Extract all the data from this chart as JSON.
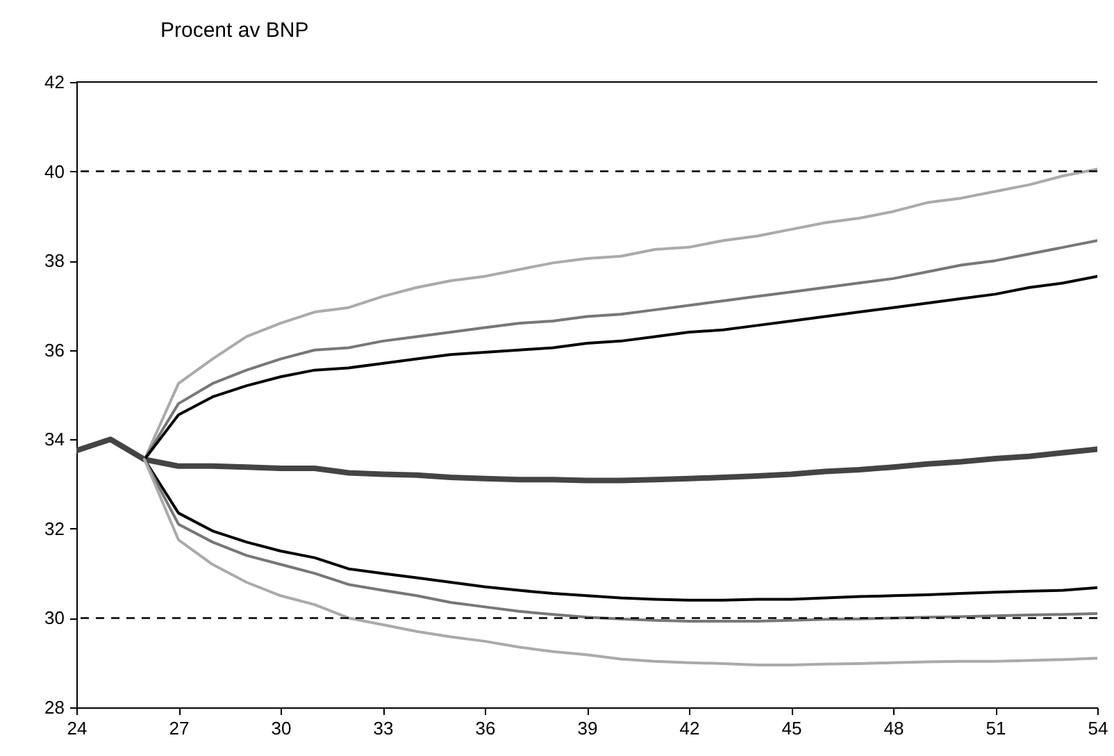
{
  "chart_data": {
    "type": "line",
    "ylabel": "Procent av BNP",
    "xlim": [
      24,
      54
    ],
    "xticks": [
      24,
      27,
      30,
      33,
      36,
      39,
      42,
      45,
      48,
      51,
      54
    ],
    "ylim": [
      28,
      42
    ],
    "yticks": [
      28,
      30,
      32,
      34,
      36,
      38,
      40,
      42
    ],
    "grid": false,
    "ref_lines": [
      {
        "axis": "y",
        "value": 40,
        "label": null,
        "line_style": "dashed",
        "color": "#000000"
      },
      {
        "axis": "y",
        "value": 30,
        "label": null,
        "line_style": "dashed",
        "color": "#000000"
      }
    ],
    "series": [
      {
        "color": "#444444",
        "x": [
          24,
          25,
          26,
          27,
          28,
          29,
          30,
          31,
          32,
          33,
          34,
          35,
          36,
          37,
          38,
          39,
          40,
          41,
          42,
          43,
          44,
          45,
          46,
          47,
          48,
          49,
          50,
          51,
          52,
          53,
          54
        ],
        "values": [
          33.75,
          34.0,
          33.55,
          33.4,
          33.4,
          33.38,
          33.35,
          33.35,
          33.25,
          33.22,
          33.2,
          33.15,
          33.12,
          33.1,
          33.1,
          33.08,
          33.08,
          33.1,
          33.12,
          33.15,
          33.18,
          33.22,
          33.28,
          33.32,
          33.38,
          33.45,
          33.5,
          33.57,
          33.62,
          33.7,
          33.78
        ]
      },
      {
        "color": "#aaaaaa",
        "x": [
          26,
          27,
          28,
          29,
          30,
          31,
          32,
          33,
          34,
          35,
          36,
          37,
          38,
          39,
          40,
          41,
          42,
          43,
          44,
          45,
          46,
          47,
          48,
          49,
          50,
          51,
          52,
          53,
          54
        ],
        "values": [
          33.55,
          35.25,
          35.8,
          36.3,
          36.6,
          36.85,
          36.95,
          37.2,
          37.4,
          37.55,
          37.65,
          37.8,
          37.95,
          38.05,
          38.1,
          38.25,
          38.3,
          38.45,
          38.55,
          38.7,
          38.85,
          38.95,
          39.1,
          39.3,
          39.4,
          39.55,
          39.7,
          39.9,
          40.05
        ]
      },
      {
        "color": "#777777",
        "x": [
          26,
          27,
          28,
          29,
          30,
          31,
          32,
          33,
          34,
          35,
          36,
          37,
          38,
          39,
          40,
          41,
          42,
          43,
          44,
          45,
          46,
          47,
          48,
          49,
          50,
          51,
          52,
          53,
          54
        ],
        "values": [
          33.55,
          34.8,
          35.25,
          35.55,
          35.8,
          36.0,
          36.05,
          36.2,
          36.3,
          36.4,
          36.5,
          36.6,
          36.65,
          36.75,
          36.8,
          36.9,
          37.0,
          37.1,
          37.2,
          37.3,
          37.4,
          37.5,
          37.6,
          37.75,
          37.9,
          38.0,
          38.15,
          38.3,
          38.45
        ]
      },
      {
        "color": "#000000",
        "x": [
          26,
          27,
          28,
          29,
          30,
          31,
          32,
          33,
          34,
          35,
          36,
          37,
          38,
          39,
          40,
          41,
          42,
          43,
          44,
          45,
          46,
          47,
          48,
          49,
          50,
          51,
          52,
          53,
          54
        ],
        "values": [
          33.55,
          34.55,
          34.95,
          35.2,
          35.4,
          35.55,
          35.6,
          35.7,
          35.8,
          35.9,
          35.95,
          36.0,
          36.05,
          36.15,
          36.2,
          36.3,
          36.4,
          36.45,
          36.55,
          36.65,
          36.75,
          36.85,
          36.95,
          37.05,
          37.15,
          37.25,
          37.4,
          37.5,
          37.65
        ]
      },
      {
        "color": "#000000",
        "x": [
          26,
          27,
          28,
          29,
          30,
          31,
          32,
          33,
          34,
          35,
          36,
          37,
          38,
          39,
          40,
          41,
          42,
          43,
          44,
          45,
          46,
          47,
          48,
          49,
          50,
          51,
          52,
          53,
          54
        ],
        "values": [
          33.55,
          32.35,
          31.95,
          31.7,
          31.5,
          31.35,
          31.1,
          31.0,
          30.9,
          30.8,
          30.7,
          30.62,
          30.55,
          30.5,
          30.45,
          30.42,
          30.4,
          30.4,
          30.42,
          30.42,
          30.45,
          30.48,
          30.5,
          30.52,
          30.55,
          30.58,
          30.6,
          30.62,
          30.68
        ]
      },
      {
        "color": "#777777",
        "x": [
          26,
          27,
          28,
          29,
          30,
          31,
          32,
          33,
          34,
          35,
          36,
          37,
          38,
          39,
          40,
          41,
          42,
          43,
          44,
          45,
          46,
          47,
          48,
          49,
          50,
          51,
          52,
          53,
          54
        ],
        "values": [
          33.55,
          32.1,
          31.7,
          31.4,
          31.2,
          31.0,
          30.75,
          30.62,
          30.5,
          30.35,
          30.25,
          30.15,
          30.08,
          30.02,
          29.98,
          29.95,
          29.93,
          29.93,
          29.93,
          29.95,
          29.97,
          29.98,
          30.0,
          30.02,
          30.03,
          30.05,
          30.07,
          30.08,
          30.1
        ]
      },
      {
        "color": "#aaaaaa",
        "x": [
          26,
          27,
          28,
          29,
          30,
          31,
          32,
          33,
          34,
          35,
          36,
          37,
          38,
          39,
          40,
          41,
          42,
          43,
          44,
          45,
          46,
          47,
          48,
          49,
          50,
          51,
          52,
          53,
          54
        ],
        "values": [
          33.55,
          31.75,
          31.2,
          30.8,
          30.5,
          30.3,
          30.0,
          29.85,
          29.7,
          29.58,
          29.48,
          29.35,
          29.25,
          29.18,
          29.08,
          29.03,
          29.0,
          28.98,
          28.95,
          28.95,
          28.97,
          28.98,
          29.0,
          29.02,
          29.03,
          29.03,
          29.05,
          29.07,
          29.1
        ]
      }
    ]
  }
}
